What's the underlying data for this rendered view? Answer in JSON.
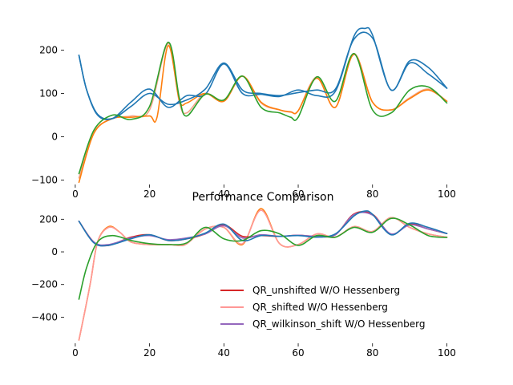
{
  "chart_data": [
    {
      "type": "line",
      "title": "",
      "xlabel": "",
      "ylabel": "",
      "xlim": [
        -3,
        104
      ],
      "ylim": [
        -110,
        260
      ],
      "xticks": [
        0,
        20,
        40,
        60,
        80,
        100
      ],
      "yticks": [
        -100,
        0,
        100,
        200
      ],
      "ytick_labels": [
        "−100",
        "0",
        "100",
        "200"
      ],
      "grid": false,
      "series": [
        {
          "color": "#f4a58a",
          "points": [
            [
              1,
              -95
            ],
            [
              5,
              10
            ],
            [
              10,
              42
            ],
            [
              15,
              48
            ],
            [
              20,
              62
            ],
            [
              25,
              215
            ],
            [
              28,
              80
            ],
            [
              30,
              55
            ],
            [
              35,
              100
            ],
            [
              40,
              82
            ],
            [
              45,
              140
            ],
            [
              50,
              78
            ],
            [
              55,
              62
            ],
            [
              58,
              58
            ],
            [
              60,
              60
            ],
            [
              65,
              138
            ],
            [
              70,
              68
            ],
            [
              75,
              192
            ],
            [
              80,
              80
            ],
            [
              85,
              62
            ],
            [
              90,
              90
            ],
            [
              95,
              110
            ],
            [
              100,
              82
            ]
          ]
        },
        {
          "color": "#ff7f0e",
          "points": [
            [
              1,
              -105
            ],
            [
              5,
              8
            ],
            [
              10,
              42
            ],
            [
              15,
              45
            ],
            [
              20,
              48
            ],
            [
              22,
              45
            ],
            [
              25,
              210
            ],
            [
              28,
              85
            ],
            [
              30,
              78
            ],
            [
              35,
              100
            ],
            [
              40,
              82
            ],
            [
              45,
              140
            ],
            [
              50,
              80
            ],
            [
              55,
              62
            ],
            [
              58,
              57
            ],
            [
              60,
              60
            ],
            [
              65,
              135
            ],
            [
              70,
              68
            ],
            [
              75,
              190
            ],
            [
              80,
              80
            ],
            [
              85,
              62
            ],
            [
              90,
              88
            ],
            [
              95,
              108
            ],
            [
              100,
              82
            ]
          ]
        },
        {
          "color": "#1f77b4",
          "points": [
            [
              1,
              188
            ],
            [
              3,
              110
            ],
            [
              6,
              52
            ],
            [
              10,
              42
            ],
            [
              15,
              70
            ],
            [
              20,
              100
            ],
            [
              25,
              75
            ],
            [
              30,
              85
            ],
            [
              35,
              110
            ],
            [
              40,
              170
            ],
            [
              45,
              108
            ],
            [
              50,
              100
            ],
            [
              55,
              95
            ],
            [
              60,
              102
            ],
            [
              65,
              108
            ],
            [
              70,
              110
            ],
            [
              75,
              225
            ],
            [
              80,
              228
            ],
            [
              85,
              108
            ],
            [
              90,
              170
            ],
            [
              95,
              145
            ],
            [
              100,
              112
            ]
          ]
        },
        {
          "color": "#1f77b4",
          "points": [
            [
              1,
              188
            ],
            [
              3,
              110
            ],
            [
              6,
              50
            ],
            [
              10,
              42
            ],
            [
              15,
              80
            ],
            [
              20,
              110
            ],
            [
              25,
              68
            ],
            [
              30,
              95
            ],
            [
              35,
              98
            ],
            [
              40,
              168
            ],
            [
              45,
              100
            ],
            [
              50,
              98
            ],
            [
              55,
              93
            ],
            [
              60,
              108
            ],
            [
              65,
              95
            ],
            [
              70,
              105
            ],
            [
              75,
              232
            ],
            [
              78,
              250
            ],
            [
              80,
              235
            ],
            [
              85,
              108
            ],
            [
              90,
              175
            ],
            [
              95,
              160
            ],
            [
              100,
              112
            ]
          ]
        },
        {
          "color": "#2ca02c",
          "points": [
            [
              1,
              -85
            ],
            [
              5,
              15
            ],
            [
              10,
              50
            ],
            [
              15,
              40
            ],
            [
              20,
              70
            ],
            [
              25,
              218
            ],
            [
              28,
              90
            ],
            [
              30,
              48
            ],
            [
              35,
              98
            ],
            [
              40,
              85
            ],
            [
              45,
              140
            ],
            [
              50,
              68
            ],
            [
              55,
              55
            ],
            [
              58,
              45
            ],
            [
              60,
              45
            ],
            [
              65,
              138
            ],
            [
              70,
              82
            ],
            [
              75,
              192
            ],
            [
              80,
              62
            ],
            [
              85,
              55
            ],
            [
              90,
              108
            ],
            [
              95,
              115
            ],
            [
              100,
              78
            ]
          ]
        }
      ]
    },
    {
      "type": "line",
      "title": "Performance Comparison",
      "xlabel": "",
      "ylabel": "",
      "xlim": [
        -3,
        104
      ],
      "ylim": [
        -560,
        290
      ],
      "xticks": [
        0,
        20,
        40,
        60,
        80,
        100
      ],
      "yticks": [
        -400,
        -200,
        0,
        200
      ],
      "ytick_labels": [
        "−400",
        "−200",
        "0",
        "200"
      ],
      "grid": false,
      "legend": {
        "placement": "lower-right",
        "entries": [
          {
            "label": "QR_unshifted W/O Hessenberg",
            "color": "#d62728"
          },
          {
            "label": "QR_shifted W/O Hessenberg",
            "color": "#ff9896"
          },
          {
            "label": "QR_wilkinson_shift W/O Hessenberg",
            "color": "#9467bd"
          }
        ]
      },
      "series": [
        {
          "color": "#ff7f0e",
          "points": [
            [
              1,
              -540
            ],
            [
              4,
              -200
            ],
            [
              6,
              60
            ],
            [
              9,
              155
            ],
            [
              12,
              120
            ],
            [
              15,
              60
            ],
            [
              20,
              45
            ],
            [
              25,
              45
            ],
            [
              28,
              40
            ],
            [
              30,
              50
            ],
            [
              35,
              140
            ],
            [
              40,
              150
            ],
            [
              45,
              45
            ],
            [
              50,
              265
            ],
            [
              55,
              50
            ],
            [
              60,
              45
            ],
            [
              65,
              110
            ],
            [
              70,
              90
            ],
            [
              75,
              155
            ],
            [
              80,
              125
            ],
            [
              85,
              210
            ],
            [
              90,
              150
            ],
            [
              95,
              110
            ],
            [
              100,
              90
            ]
          ]
        },
        {
          "color": "#ff9896",
          "points": [
            [
              1,
              -540
            ],
            [
              4,
              -200
            ],
            [
              6,
              60
            ],
            [
              9,
              150
            ],
            [
              12,
              120
            ],
            [
              15,
              60
            ],
            [
              20,
              45
            ],
            [
              25,
              45
            ],
            [
              28,
              40
            ],
            [
              30,
              50
            ],
            [
              35,
              140
            ],
            [
              40,
              150
            ],
            [
              45,
              50
            ],
            [
              50,
              255
            ],
            [
              55,
              50
            ],
            [
              60,
              45
            ],
            [
              65,
              110
            ],
            [
              70,
              90
            ],
            [
              75,
              155
            ],
            [
              80,
              125
            ],
            [
              85,
              210
            ],
            [
              90,
              150
            ],
            [
              95,
              110
            ],
            [
              100,
              90
            ]
          ]
        },
        {
          "color": "#d62728",
          "points": [
            [
              1,
              188
            ],
            [
              5,
              60
            ],
            [
              9,
              40
            ],
            [
              15,
              90
            ],
            [
              20,
              105
            ],
            [
              25,
              70
            ],
            [
              30,
              80
            ],
            [
              35,
              110
            ],
            [
              40,
              165
            ],
            [
              45,
              95
            ],
            [
              50,
              100
            ],
            [
              55,
              95
            ],
            [
              60,
              102
            ],
            [
              65,
              95
            ],
            [
              70,
              105
            ],
            [
              75,
              232
            ],
            [
              80,
              230
            ],
            [
              85,
              108
            ],
            [
              90,
              170
            ],
            [
              95,
              140
            ],
            [
              100,
              112
            ]
          ]
        },
        {
          "color": "#9467bd",
          "points": [
            [
              1,
              188
            ],
            [
              5,
              60
            ],
            [
              9,
              45
            ],
            [
              15,
              85
            ],
            [
              20,
              100
            ],
            [
              25,
              75
            ],
            [
              30,
              85
            ],
            [
              35,
              110
            ],
            [
              40,
              160
            ],
            [
              45,
              85
            ],
            [
              50,
              105
            ],
            [
              55,
              95
            ],
            [
              60,
              102
            ],
            [
              65,
              95
            ],
            [
              70,
              105
            ],
            [
              75,
              228
            ],
            [
              80,
              226
            ],
            [
              85,
              110
            ],
            [
              90,
              165
            ],
            [
              95,
              140
            ],
            [
              100,
              112
            ]
          ]
        },
        {
          "color": "#1f77b4",
          "points": [
            [
              1,
              188
            ],
            [
              5,
              55
            ],
            [
              9,
              40
            ],
            [
              15,
              80
            ],
            [
              20,
              105
            ],
            [
              25,
              70
            ],
            [
              30,
              80
            ],
            [
              35,
              115
            ],
            [
              40,
              170
            ],
            [
              45,
              70
            ],
            [
              50,
              100
            ],
            [
              55,
              95
            ],
            [
              60,
              100
            ],
            [
              65,
              90
            ],
            [
              70,
              110
            ],
            [
              75,
              220
            ],
            [
              78,
              250
            ],
            [
              80,
              230
            ],
            [
              85,
              105
            ],
            [
              90,
              175
            ],
            [
              95,
              150
            ],
            [
              100,
              112
            ]
          ]
        },
        {
          "color": "#2ca02c",
          "points": [
            [
              1,
              -290
            ],
            [
              3,
              -100
            ],
            [
              6,
              60
            ],
            [
              10,
              100
            ],
            [
              15,
              70
            ],
            [
              20,
              50
            ],
            [
              25,
              45
            ],
            [
              30,
              55
            ],
            [
              35,
              150
            ],
            [
              40,
              80
            ],
            [
              45,
              70
            ],
            [
              50,
              130
            ],
            [
              55,
              110
            ],
            [
              60,
              40
            ],
            [
              65,
              100
            ],
            [
              70,
              90
            ],
            [
              75,
              150
            ],
            [
              80,
              120
            ],
            [
              85,
              205
            ],
            [
              90,
              165
            ],
            [
              95,
              100
            ],
            [
              100,
              88
            ]
          ]
        }
      ]
    }
  ]
}
